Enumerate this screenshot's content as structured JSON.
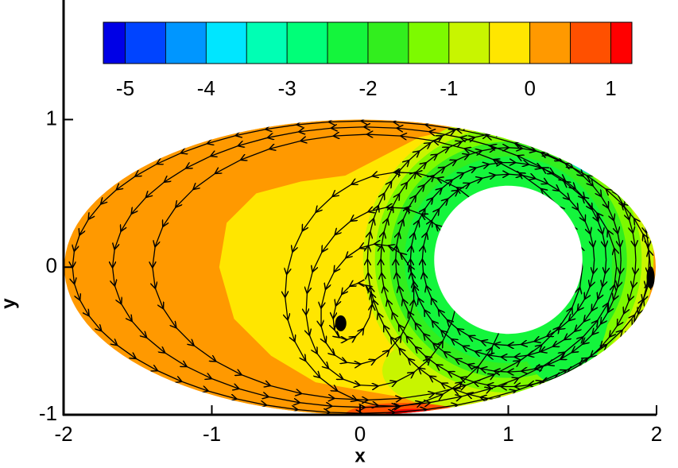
{
  "chart_data": {
    "type": "contour",
    "xlabel": "x",
    "ylabel": "y",
    "xlim": [
      -2,
      2
    ],
    "ylim": [
      -1,
      1.81
    ],
    "xticks": [
      -2,
      -1,
      0,
      1,
      2
    ],
    "yticks": [
      -1,
      0,
      1
    ],
    "colorbar": {
      "lim": [
        -5.27,
        1.26
      ],
      "levels": [
        -5,
        -4.5,
        -4,
        -3.5,
        -3,
        -2.5,
        -2,
        -1.5,
        -1,
        -0.5,
        0,
        0.5,
        1
      ],
      "ticks": [
        -5,
        -4,
        -3,
        -2,
        -1,
        0,
        1
      ],
      "colors": [
        "#0000e6",
        "#0044ff",
        "#0096ff",
        "#00e6ff",
        "#00ffb4",
        "#00ff78",
        "#14f53c",
        "#32ee1e",
        "#7dfa00",
        "#c8f500",
        "#ffe600",
        "#ff9900",
        "#ff5000",
        "#ff0000"
      ]
    }
  }
}
